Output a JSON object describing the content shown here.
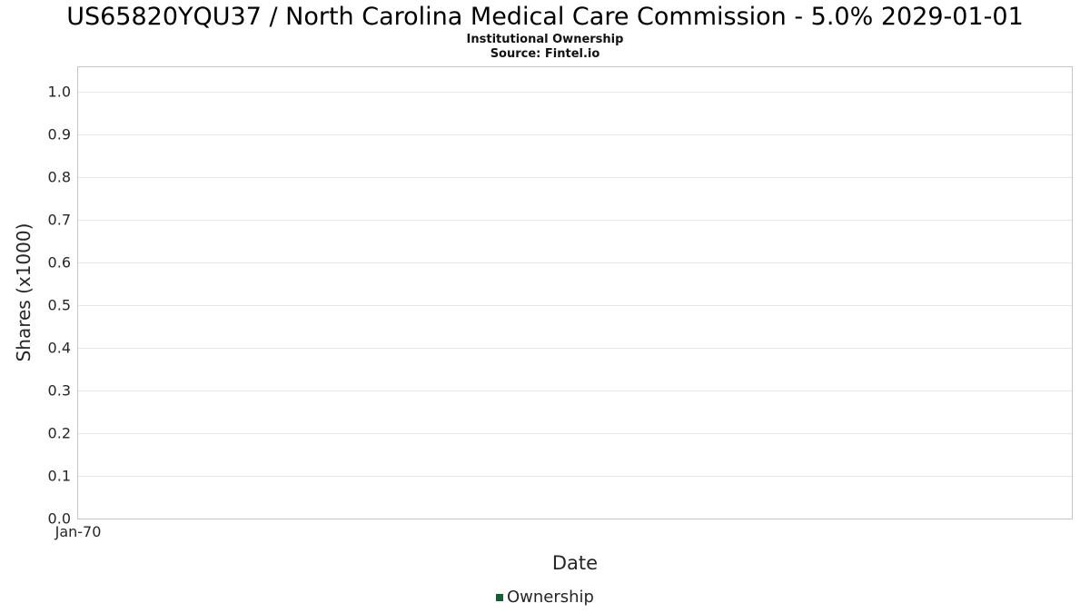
{
  "header": {
    "title": "US65820YQU37 / North Carolina Medical Care Commission - 5.0% 2029-01-01",
    "subtitle": "Institutional Ownership",
    "source": "Source: Fintel.io"
  },
  "chart_data": {
    "type": "line",
    "title": "US65820YQU37 / North Carolina Medical Care Commission - 5.0% 2029-01-01",
    "subtitle": "Institutional Ownership",
    "source": "Source: Fintel.io",
    "xlabel": "Date",
    "ylabel": "Shares (x1000)",
    "x_tick_labels": [
      "Jan-70"
    ],
    "y_ticks": [
      0.0,
      0.1,
      0.2,
      0.3,
      0.4,
      0.5,
      0.6,
      0.7,
      0.8,
      0.9,
      1.0
    ],
    "y_tick_labels": [
      "0.0",
      "0.1",
      "0.2",
      "0.3",
      "0.4",
      "0.5",
      "0.6",
      "0.7",
      "0.8",
      "0.9",
      "1.0"
    ],
    "ylim": [
      0,
      1.057
    ],
    "grid": true,
    "legend": {
      "position": "bottom",
      "entries": [
        {
          "label": "Ownership",
          "color": "#175d33"
        }
      ]
    },
    "series": [
      {
        "name": "Ownership",
        "x": [],
        "values": []
      }
    ]
  },
  "colors": {
    "plot_border": "#c4c4c4",
    "gridline": "#e7e7e7",
    "legend_marker": "#175d33"
  }
}
